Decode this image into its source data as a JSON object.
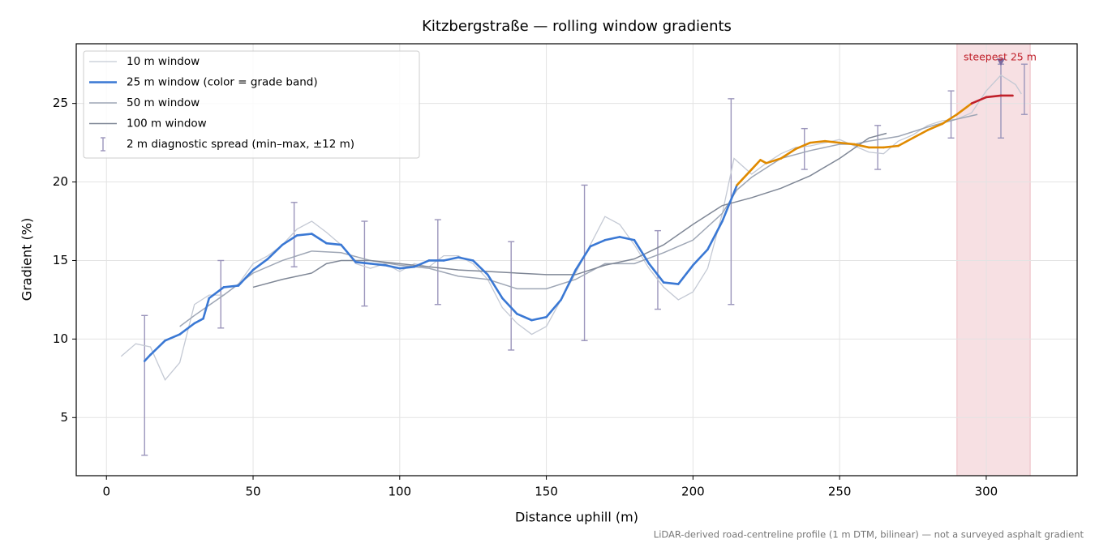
{
  "chart_data": {
    "type": "line",
    "title": "Kitzbergstraße — rolling window gradients",
    "x_label": "Distance uphill (m)",
    "y_label": "Gradient (%)",
    "footnote": "LiDAR-derived road-centreline profile (1 m DTM, bilinear) — not a surveyed asphalt gradient",
    "xlim": [
      -10.3,
      331
    ],
    "ylim": [
      1.3,
      28.8
    ],
    "xticks": [
      0,
      50,
      100,
      150,
      200,
      250,
      300
    ],
    "yticks": [
      5,
      10,
      15,
      20,
      25
    ],
    "grid": true,
    "legend": "upper left",
    "series": [
      {
        "name": "10 m window",
        "color": "#c4c9d4",
        "width": 1.3,
        "x": [
          5,
          10,
          15,
          20,
          25,
          30,
          35,
          40,
          45,
          50,
          55,
          60,
          65,
          70,
          75,
          80,
          85,
          90,
          95,
          100,
          105,
          110,
          115,
          120,
          125,
          130,
          135,
          140,
          145,
          150,
          155,
          160,
          165,
          170,
          175,
          180,
          185,
          190,
          195,
          200,
          205,
          210,
          214,
          220,
          225,
          230,
          235,
          240,
          245,
          250,
          255,
          260,
          265,
          270,
          275,
          280,
          285,
          290,
          295,
          300,
          305,
          310,
          312
        ],
        "values": [
          8.9,
          9.7,
          9.5,
          7.4,
          8.5,
          12.2,
          12.8,
          12.8,
          13.5,
          14.8,
          15.3,
          16.0,
          17.0,
          17.5,
          16.8,
          16.0,
          14.8,
          14.5,
          14.8,
          14.3,
          14.8,
          14.6,
          15.3,
          15.3,
          14.8,
          13.8,
          12.0,
          11.0,
          10.3,
          10.8,
          12.5,
          14.2,
          16.0,
          17.8,
          17.3,
          16.0,
          14.5,
          13.3,
          12.5,
          13.0,
          14.5,
          18.0,
          21.5,
          20.5,
          21.2,
          21.8,
          22.2,
          22.3,
          22.5,
          22.7,
          22.3,
          21.9,
          21.8,
          22.6,
          23.0,
          23.6,
          23.9,
          24.0,
          24.4,
          25.8,
          26.8,
          26.2,
          25.6
        ]
      },
      {
        "name": "25 m window (color = grade band)",
        "color": "#3a78d4",
        "width": 2.6,
        "band_edges": [
          20,
          25
        ],
        "band_colors": [
          "#3a78d4",
          "#e08a00",
          "#c0202a"
        ],
        "x": [
          13,
          15,
          20,
          25,
          30,
          33,
          35,
          40,
          45,
          50,
          55,
          60,
          65,
          70,
          75,
          80,
          85,
          90,
          95,
          100,
          105,
          110,
          115,
          120,
          125,
          130,
          135,
          140,
          145,
          150,
          155,
          160,
          165,
          170,
          175,
          180,
          185,
          190,
          195,
          200,
          205,
          210,
          215,
          220,
          223,
          225,
          230,
          235,
          240,
          245,
          250,
          255,
          260,
          265,
          270,
          275,
          280,
          285,
          290,
          295,
          300,
          305,
          309
        ],
        "values": [
          8.6,
          9.0,
          9.9,
          10.3,
          11.0,
          11.3,
          12.6,
          13.3,
          13.4,
          14.4,
          15.1,
          16.0,
          16.6,
          16.7,
          16.1,
          16.0,
          14.9,
          14.8,
          14.7,
          14.5,
          14.6,
          15.0,
          15.0,
          15.2,
          15.0,
          14.1,
          12.6,
          11.6,
          11.2,
          11.4,
          12.5,
          14.4,
          15.9,
          16.3,
          16.5,
          16.3,
          14.8,
          13.6,
          13.5,
          14.7,
          15.7,
          17.5,
          19.8,
          20.8,
          21.4,
          21.2,
          21.5,
          22.1,
          22.5,
          22.6,
          22.5,
          22.4,
          22.2,
          22.2,
          22.3,
          22.8,
          23.3,
          23.7,
          24.3,
          25.0,
          25.4,
          25.5,
          25.5
        ]
      },
      {
        "name": "50 m window",
        "color": "#9ea6b5",
        "width": 1.5,
        "x": [
          25,
          30,
          40,
          50,
          60,
          70,
          80,
          90,
          100,
          110,
          120,
          130,
          140,
          150,
          160,
          170,
          180,
          190,
          200,
          210,
          215,
          220,
          230,
          240,
          250,
          255,
          260,
          270,
          280,
          290,
          297
        ],
        "values": [
          10.8,
          11.5,
          12.8,
          14.2,
          15.0,
          15.6,
          15.5,
          15.0,
          14.7,
          14.5,
          14.0,
          13.8,
          13.2,
          13.2,
          13.8,
          14.8,
          14.8,
          15.5,
          16.3,
          18.0,
          19.5,
          20.3,
          21.5,
          22.0,
          22.4,
          22.4,
          22.6,
          22.9,
          23.5,
          24.0,
          24.3
        ]
      },
      {
        "name": "100 m window",
        "color": "#7f8796",
        "width": 1.5,
        "x": [
          50,
          60,
          70,
          75,
          80,
          90,
          100,
          110,
          120,
          130,
          140,
          150,
          160,
          170,
          180,
          190,
          200,
          210,
          220,
          230,
          240,
          250,
          260,
          266
        ],
        "values": [
          13.3,
          13.8,
          14.2,
          14.8,
          15.0,
          15.0,
          14.8,
          14.6,
          14.4,
          14.3,
          14.2,
          14.1,
          14.1,
          14.7,
          15.1,
          16.0,
          17.3,
          18.5,
          19.0,
          19.6,
          20.4,
          21.5,
          22.8,
          23.1
        ]
      }
    ],
    "errorbars": {
      "name": "2 m diagnostic spread (min–max, ±12 m)",
      "color": "#9b95bb",
      "x": [
        13,
        39,
        64,
        88,
        113,
        138,
        163,
        188,
        213,
        238,
        263,
        288,
        305,
        313
      ],
      "min": [
        2.6,
        10.7,
        14.6,
        12.1,
        12.2,
        9.3,
        9.9,
        11.9,
        12.2,
        20.8,
        20.8,
        22.8,
        22.8,
        24.3
      ],
      "max": [
        11.5,
        15.0,
        18.7,
        17.5,
        17.6,
        16.2,
        19.8,
        16.9,
        25.3,
        23.4,
        23.6,
        25.8,
        27.5,
        27.5
      ]
    },
    "span": {
      "label": "steepest 25 m",
      "x": [
        290,
        315
      ],
      "color": "#d9707f",
      "marker_x": 305,
      "marker_y": 27.6
    }
  }
}
